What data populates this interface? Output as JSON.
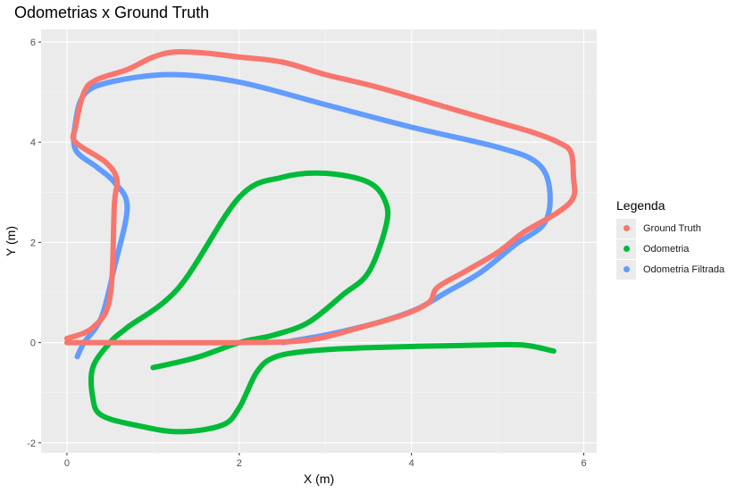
{
  "chart_data": {
    "type": "line",
    "title": "Odometrias x Ground Truth",
    "xlabel": "X (m)",
    "ylabel": "Y (m)",
    "xlim": [
      -0.3,
      6.15
    ],
    "ylim": [
      -2.2,
      6.25
    ],
    "x_ticks": [
      0,
      2,
      4,
      6
    ],
    "y_ticks": [
      -2,
      0,
      2,
      4,
      6
    ],
    "grid": true,
    "legend_title": "Legenda",
    "legend_position": "right",
    "series": [
      {
        "name": "Ground Truth",
        "color": "#F8766D",
        "points": [
          [
            0,
            0.08
          ],
          [
            0.3,
            0.3
          ],
          [
            0.5,
            0.9
          ],
          [
            0.55,
            2.75
          ],
          [
            0.58,
            3.25
          ],
          [
            0.45,
            3.6
          ],
          [
            0.1,
            4.0
          ],
          [
            0.1,
            4.3
          ],
          [
            0.2,
            5.0
          ],
          [
            0.35,
            5.25
          ],
          [
            0.7,
            5.45
          ],
          [
            1.0,
            5.7
          ],
          [
            1.25,
            5.8
          ],
          [
            1.6,
            5.78
          ],
          [
            2.0,
            5.7
          ],
          [
            2.5,
            5.6
          ],
          [
            3.0,
            5.35
          ],
          [
            3.6,
            5.1
          ],
          [
            4.4,
            4.7
          ],
          [
            5.0,
            4.4
          ],
          [
            5.4,
            4.2
          ],
          [
            5.7,
            4.0
          ],
          [
            5.85,
            3.8
          ],
          [
            5.88,
            3.3
          ],
          [
            5.88,
            2.9
          ],
          [
            5.7,
            2.6
          ],
          [
            5.3,
            2.2
          ],
          [
            5.0,
            1.8
          ],
          [
            4.6,
            1.4
          ],
          [
            4.3,
            1.1
          ],
          [
            4.2,
            0.8
          ],
          [
            3.9,
            0.55
          ],
          [
            3.4,
            0.3
          ],
          [
            2.8,
            0.05
          ],
          [
            2.0,
            0.0
          ],
          [
            1.0,
            0.0
          ],
          [
            0,
            0.0
          ]
        ]
      },
      {
        "name": "Odometria",
        "color": "#00BA38",
        "points": [
          [
            5.65,
            -0.17
          ],
          [
            5.3,
            -0.05
          ],
          [
            4.8,
            -0.05
          ],
          [
            3.5,
            -0.1
          ],
          [
            2.8,
            -0.17
          ],
          [
            2.4,
            -0.3
          ],
          [
            2.2,
            -0.6
          ],
          [
            2.0,
            -1.3
          ],
          [
            1.8,
            -1.65
          ],
          [
            1.3,
            -1.78
          ],
          [
            0.8,
            -1.65
          ],
          [
            0.4,
            -1.45
          ],
          [
            0.3,
            -1.1
          ],
          [
            0.3,
            -0.5
          ],
          [
            0.5,
            0.0
          ],
          [
            0.7,
            0.3
          ],
          [
            1.3,
            1.1
          ],
          [
            2.0,
            2.9
          ],
          [
            2.5,
            3.3
          ],
          [
            3.0,
            3.38
          ],
          [
            3.5,
            3.2
          ],
          [
            3.7,
            2.8
          ],
          [
            3.7,
            2.3
          ],
          [
            3.5,
            1.4
          ],
          [
            3.2,
            0.95
          ],
          [
            2.8,
            0.4
          ],
          [
            2.4,
            0.15
          ],
          [
            2.0,
            0.0
          ],
          [
            1.5,
            -0.3
          ],
          [
            1.0,
            -0.5
          ]
        ]
      },
      {
        "name": "Odometria Filtrada",
        "color": "#619CFF",
        "points": [
          [
            0.12,
            -0.28
          ],
          [
            0.2,
            0.0
          ],
          [
            0.4,
            0.5
          ],
          [
            0.55,
            1.5
          ],
          [
            0.7,
            2.7
          ],
          [
            0.55,
            3.2
          ],
          [
            0.35,
            3.5
          ],
          [
            0.1,
            3.85
          ],
          [
            0.1,
            4.4
          ],
          [
            0.2,
            4.95
          ],
          [
            0.5,
            5.2
          ],
          [
            1.2,
            5.35
          ],
          [
            2.0,
            5.2
          ],
          [
            3.0,
            4.75
          ],
          [
            4.0,
            4.3
          ],
          [
            5.0,
            3.9
          ],
          [
            5.45,
            3.6
          ],
          [
            5.6,
            3.1
          ],
          [
            5.55,
            2.4
          ],
          [
            5.2,
            1.95
          ],
          [
            4.8,
            1.4
          ],
          [
            4.4,
            1.0
          ],
          [
            4.1,
            0.7
          ],
          [
            3.8,
            0.5
          ],
          [
            3.5,
            0.35
          ],
          [
            3.0,
            0.15
          ],
          [
            2.5,
            0.0
          ]
        ]
      }
    ]
  }
}
